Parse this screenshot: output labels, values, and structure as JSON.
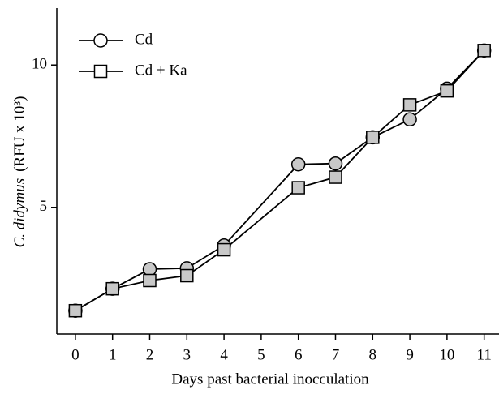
{
  "chart_data": {
    "type": "line",
    "xlabel": "Days past bacterial inocculation",
    "ylabel_italic": "C. didymus",
    "ylabel": "(RFU x 10³)",
    "x": [
      0,
      1,
      2,
      3,
      4,
      6,
      7,
      8,
      9,
      10,
      11
    ],
    "series": [
      {
        "name": "Cd",
        "color": "#000000",
        "marker": "circle",
        "values": [
          1.37,
          2.14,
          2.83,
          2.86,
          3.66,
          6.51,
          6.54,
          7.46,
          8.09,
          9.17,
          10.51
        ]
      },
      {
        "name": "Cd + Ka",
        "color": "#000000",
        "marker": "square",
        "values": [
          1.37,
          2.14,
          2.43,
          2.6,
          3.51,
          5.69,
          6.06,
          7.46,
          8.6,
          9.09,
          10.51
        ]
      }
    ],
    "xlim": [
      -0.5,
      11.4
    ],
    "xticks": [
      0,
      1,
      2,
      3,
      4,
      5,
      6,
      7,
      8,
      9,
      10,
      11
    ],
    "ylim": [
      0.55,
      12.0
    ],
    "yticks": [
      5,
      10
    ],
    "legend": "upper left",
    "marker_fill": "#c8c8c8"
  }
}
